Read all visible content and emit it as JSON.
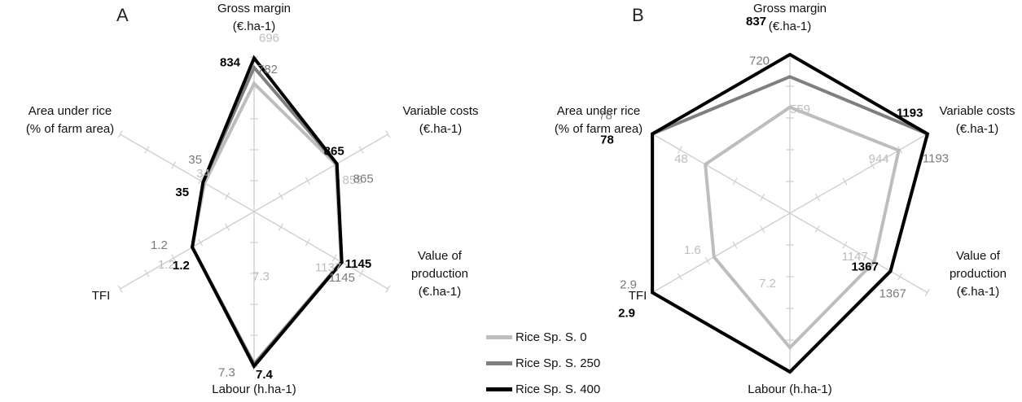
{
  "colors": {
    "series0": "#bdbdbd",
    "series250": "#7f7f7f",
    "series400": "#000000",
    "axis": "#cfcfcf",
    "label_dark": "#000000",
    "label_mid": "#7a7a7a",
    "label_light": "#bdbdbd"
  },
  "chart_data": [
    {
      "type": "radar",
      "panel": "A",
      "axes": [
        {
          "label_lines": [
            "Gross margin",
            "(€.ha-1)"
          ],
          "max": 840
        },
        {
          "label_lines": [
            "Variable costs",
            "(€.ha-1)"
          ],
          "max": 1400
        },
        {
          "label_lines": [
            "Value of",
            "production",
            "(€.ha-1)"
          ],
          "max": 1750
        },
        {
          "label_lines": [
            "Labour (h.ha-1)"
          ],
          "max": 7.4
        },
        {
          "label_lines": [
            "TFI"
          ],
          "max": 2.6
        },
        {
          "label_lines": [
            "Area under rice",
            "(% of farm area)"
          ],
          "max": 92
        }
      ],
      "series": [
        {
          "name": "Rice Sp. S. 0",
          "values": [
            696,
            855,
            1137,
            7.3,
            1.2,
            34
          ]
        },
        {
          "name": "Rice Sp. S. 250",
          "values": [
            782,
            865,
            1145,
            7.3,
            1.2,
            35
          ]
        },
        {
          "name": "Rice Sp. S. 400",
          "values": [
            834,
            865,
            1145,
            7.4,
            1.2,
            35
          ]
        }
      ],
      "value_labels": [
        [
          "696",
          "855",
          "1137",
          "7.3",
          "1.2",
          "34"
        ],
        [
          "782",
          "865",
          "1145",
          "7.3",
          "1.2",
          "35"
        ],
        [
          "834",
          "865",
          "1145",
          "7.4",
          "1.2",
          "35"
        ]
      ]
    },
    {
      "type": "radar",
      "panel": "B",
      "axes": [
        {
          "label_lines": [
            "Gross margin",
            "(€.ha-1)"
          ],
          "max": 837
        },
        {
          "label_lines": [
            "Variable costs",
            "(€.ha-1)"
          ],
          "max": 1193
        },
        {
          "label_lines": [
            "Value of",
            "production",
            "(€.ha-1)"
          ],
          "max": 1870
        },
        {
          "label_lines": [
            "Labour (h.ha-1)"
          ],
          "max": 8.5
        },
        {
          "label_lines": [
            "TFI"
          ],
          "max": 2.9
        },
        {
          "label_lines": [
            "Area under rice",
            "(% of farm area)"
          ],
          "max": 78
        }
      ],
      "series": [
        {
          "name": "Rice Sp. S. 0",
          "values": [
            559,
            944,
            1147,
            7.2,
            1.6,
            48
          ]
        },
        {
          "name": "Rice Sp. S. 250",
          "values": [
            720,
            1193,
            1367,
            8.5,
            2.9,
            78
          ]
        },
        {
          "name": "Rice Sp. S. 400",
          "values": [
            837,
            1193,
            1367,
            8.5,
            2.9,
            78
          ]
        }
      ],
      "value_labels": [
        [
          "559",
          "944",
          "1147",
          "7.2",
          "1.6",
          "48"
        ],
        [
          "720",
          "1193",
          "1367",
          "8.5",
          "2.9",
          "78"
        ],
        [
          "837",
          "1193",
          "1367",
          "8.5",
          "2.9",
          "78"
        ]
      ]
    }
  ],
  "legend": [
    {
      "label": "Rice Sp. S. 0"
    },
    {
      "label": "Rice Sp. S. 250"
    },
    {
      "label": "Rice Sp. S. 400"
    }
  ]
}
